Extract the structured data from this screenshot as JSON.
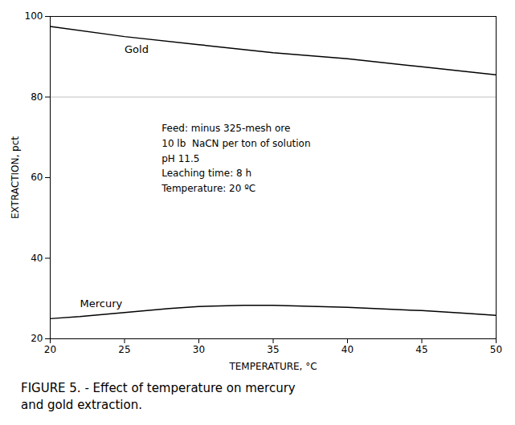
{
  "chart_data": {
    "type": "line",
    "title": "FIGURE 5. - Effect of temperature on mercury\nand gold extraction.",
    "xlabel": "TEMPERATURE, °C",
    "ylabel": "EXTRACTION, pct",
    "xlim": [
      20,
      50
    ],
    "ylim": [
      20,
      100
    ],
    "xticks": [
      20,
      25,
      30,
      35,
      40,
      45,
      50
    ],
    "yticks": [
      20,
      40,
      60,
      80,
      100
    ],
    "grid": false,
    "series": [
      {
        "name": "Gold",
        "color": "#000000",
        "x": [
          20,
          25,
          30,
          35,
          40,
          45,
          50
        ],
        "values": [
          97.5,
          95.0,
          93.0,
          91.0,
          89.5,
          87.5,
          85.5
        ]
      },
      {
        "name": "Mercury",
        "color": "#000000",
        "x": [
          20,
          22,
          25,
          28,
          30,
          33,
          35,
          38,
          40,
          43,
          45,
          48,
          50
        ],
        "values": [
          25.0,
          25.5,
          26.5,
          27.5,
          28.0,
          28.3,
          28.3,
          28.0,
          27.8,
          27.3,
          27.0,
          26.3,
          25.8
        ]
      }
    ],
    "reference_line": {
      "value": 80,
      "color": "#c0c0c0"
    },
    "annotation": "Feed: minus 325-mesh ore\n10 lb  NaCN per ton of solution\npH 11.5\nLeaching time: 8 h\nTemperature: 20 ºC"
  }
}
